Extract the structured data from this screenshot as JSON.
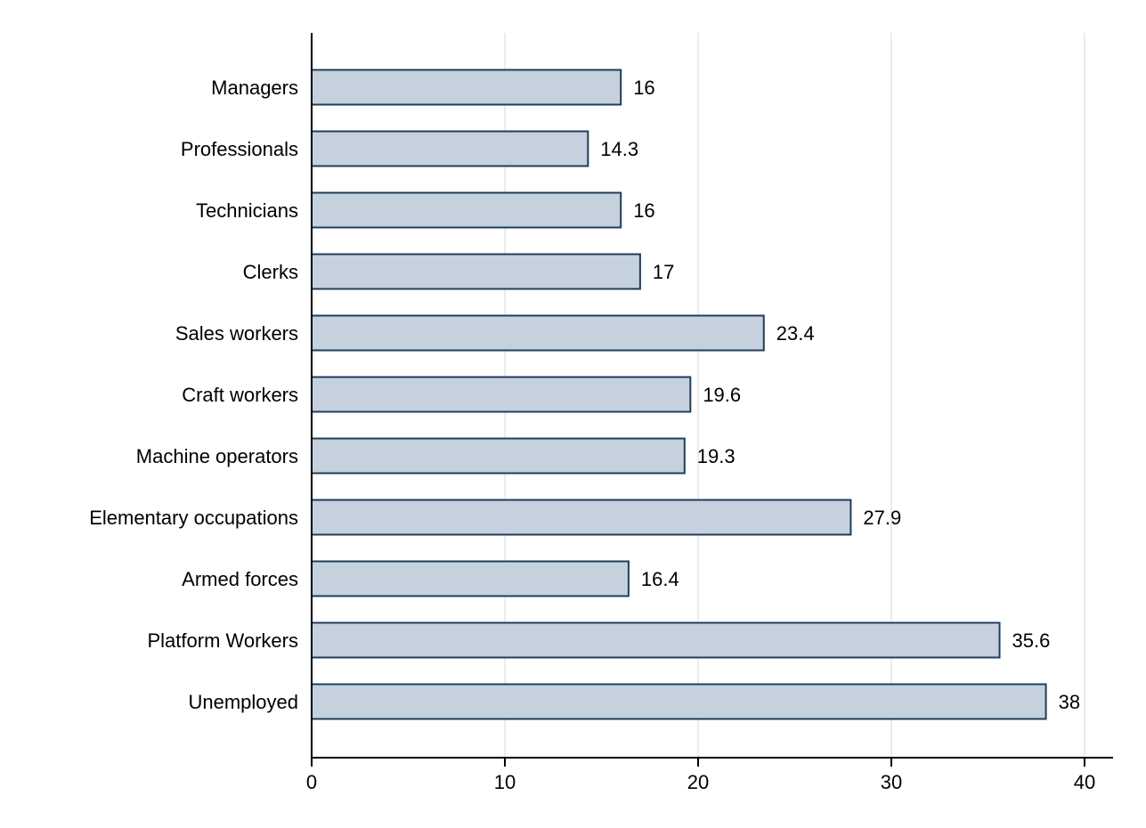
{
  "chart_data": {
    "type": "bar",
    "orientation": "horizontal",
    "title": "",
    "xlabel": "",
    "ylabel": "",
    "categories": [
      "Managers",
      "Professionals",
      "Technicians",
      "Clerks",
      "Sales workers",
      "Craft workers",
      "Machine operators",
      "Elementary occupations",
      "Armed forces",
      "Platform Workers",
      "Unemployed"
    ],
    "values": [
      16,
      14.3,
      16,
      17,
      23.4,
      19.6,
      19.3,
      27.9,
      16.4,
      35.6,
      38
    ],
    "value_labels": [
      "16",
      "14.3",
      "16",
      "17",
      "23.4",
      "19.6",
      "19.3",
      "27.9",
      "16.4",
      "35.6",
      "38"
    ],
    "xlim": [
      0,
      40
    ],
    "x_ticks": [
      0,
      10,
      20,
      30,
      40
    ],
    "x_tick_labels": [
      "0",
      "10",
      "20",
      "30",
      "40"
    ],
    "grid": "vertical",
    "legend": "none",
    "colors": {
      "bar_fill": "#c5d1dd",
      "bar_stroke": "#1f3e5c",
      "grid": "#e6eef2",
      "axis": "#000000"
    }
  }
}
